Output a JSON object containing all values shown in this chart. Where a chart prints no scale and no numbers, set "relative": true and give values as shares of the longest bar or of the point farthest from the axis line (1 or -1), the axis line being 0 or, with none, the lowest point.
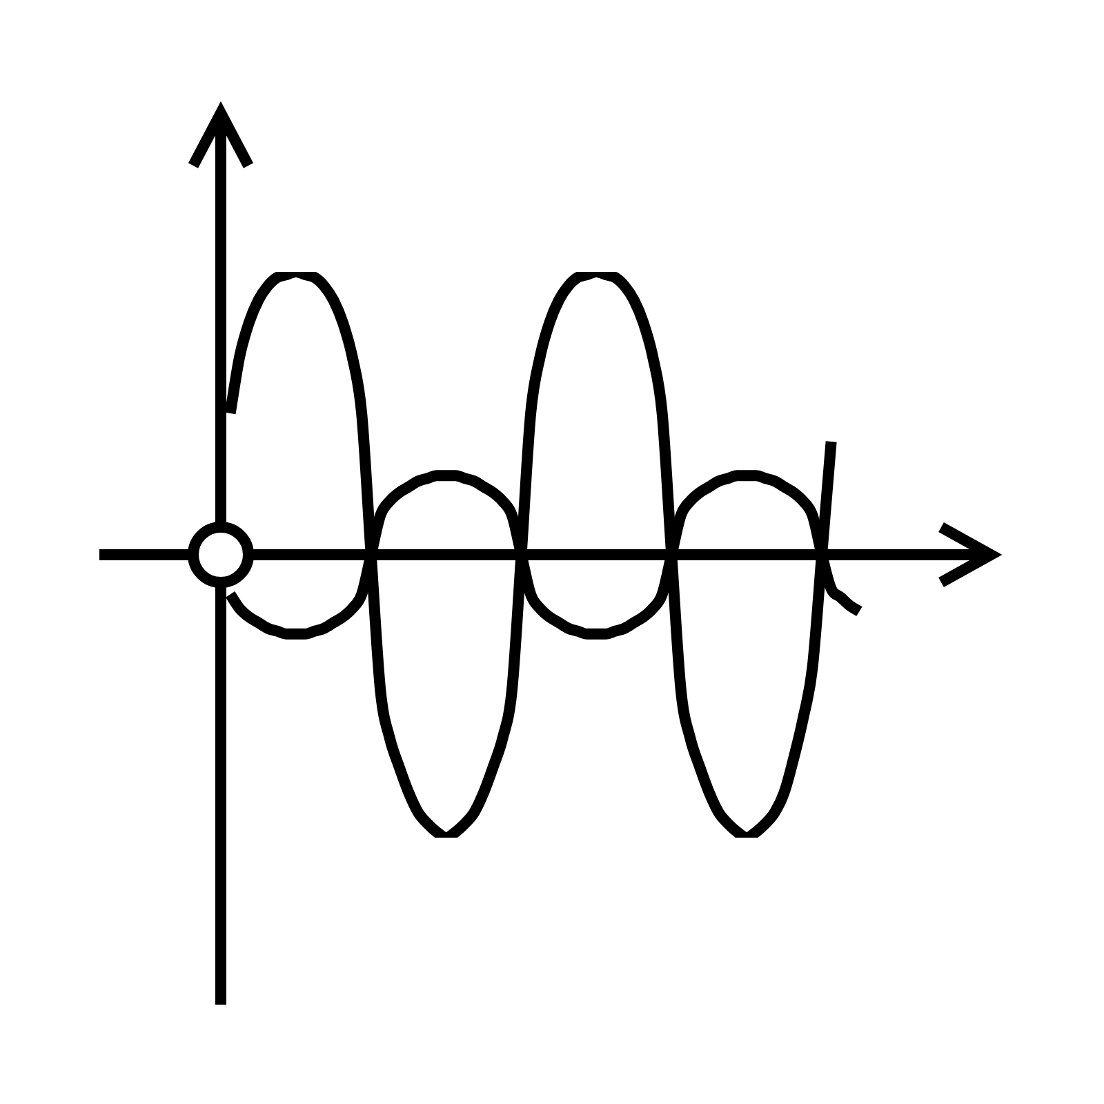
{
  "chart_data": {
    "type": "line",
    "relative": true,
    "marker": "none",
    "line_style": "solid",
    "categories": [
      null,
      null,
      null,
      null,
      null,
      null,
      null,
      null,
      null,
      null,
      null,
      null,
      null,
      null,
      null,
      null,
      null,
      null,
      null,
      null,
      null,
      null,
      null,
      null,
      null,
      null,
      null,
      null,
      null,
      null,
      null,
      null,
      null,
      null,
      null,
      null,
      null,
      null,
      null,
      null,
      null,
      null,
      null,
      null,
      null,
      null,
      null,
      null,
      null,
      null,
      null,
      null,
      null,
      null,
      null,
      null,
      null,
      null,
      null,
      null,
      null,
      null,
      null,
      null,
      null,
      null,
      null,
      null,
      null,
      null,
      null,
      null,
      null,
      null,
      null,
      null,
      null,
      null,
      null,
      null,
      null,
      null,
      null
    ],
    "series": [
      {
        "color": "#000000",
        "values": [
          null,
          0.5,
          0.7,
          0.82,
          0.9,
          0.95,
          0.98,
          0.99,
          1,
          0.99,
          0.98,
          0.95,
          0.9,
          0.82,
          0.7,
          0.5,
          0,
          -0.48,
          -0.65,
          -0.75,
          -0.84,
          -0.91,
          -0.95,
          -0.98,
          -1,
          -0.98,
          -0.95,
          -0.91,
          -0.84,
          -0.75,
          -0.65,
          -0.48,
          0,
          0.5,
          0.7,
          0.82,
          0.9,
          0.95,
          0.98,
          0.99,
          1,
          0.99,
          0.98,
          0.95,
          0.9,
          0.82,
          0.7,
          0.5,
          0,
          -0.48,
          -0.65,
          -0.75,
          -0.84,
          -0.91,
          -0.95,
          -0.98,
          -1,
          -0.98,
          -0.95,
          -0.91,
          -0.84,
          -0.72,
          -0.58,
          -0.4,
          0,
          0.4,
          null,
          null,
          null,
          null,
          null,
          null,
          null,
          null,
          null,
          null,
          null,
          null,
          null,
          null,
          null,
          null,
          null
        ]
      },
      {
        "color": "#000000",
        "values": [
          null,
          -0.14,
          -0.19,
          -0.22,
          -0.24,
          -0.26,
          -0.27,
          -0.28,
          -0.28,
          -0.28,
          -0.27,
          -0.26,
          -0.24,
          -0.22,
          -0.19,
          -0.14,
          0,
          0.14,
          0.19,
          0.22,
          0.24,
          0.26,
          0.27,
          0.28,
          0.28,
          0.28,
          0.27,
          0.26,
          0.24,
          0.22,
          0.19,
          0.14,
          0,
          -0.14,
          -0.19,
          -0.22,
          -0.24,
          -0.26,
          -0.27,
          -0.28,
          -0.28,
          -0.28,
          -0.27,
          -0.26,
          -0.24,
          -0.22,
          -0.19,
          -0.14,
          0,
          0.14,
          0.19,
          0.22,
          0.24,
          0.26,
          0.27,
          0.28,
          0.28,
          0.28,
          0.27,
          0.26,
          0.24,
          0.22,
          0.19,
          0.14,
          0,
          -0.12,
          -0.15,
          -0.18,
          -0.2,
          null,
          null,
          null,
          null,
          null,
          null,
          null,
          null,
          null,
          null,
          null,
          null,
          null,
          null
        ]
      }
    ]
  }
}
